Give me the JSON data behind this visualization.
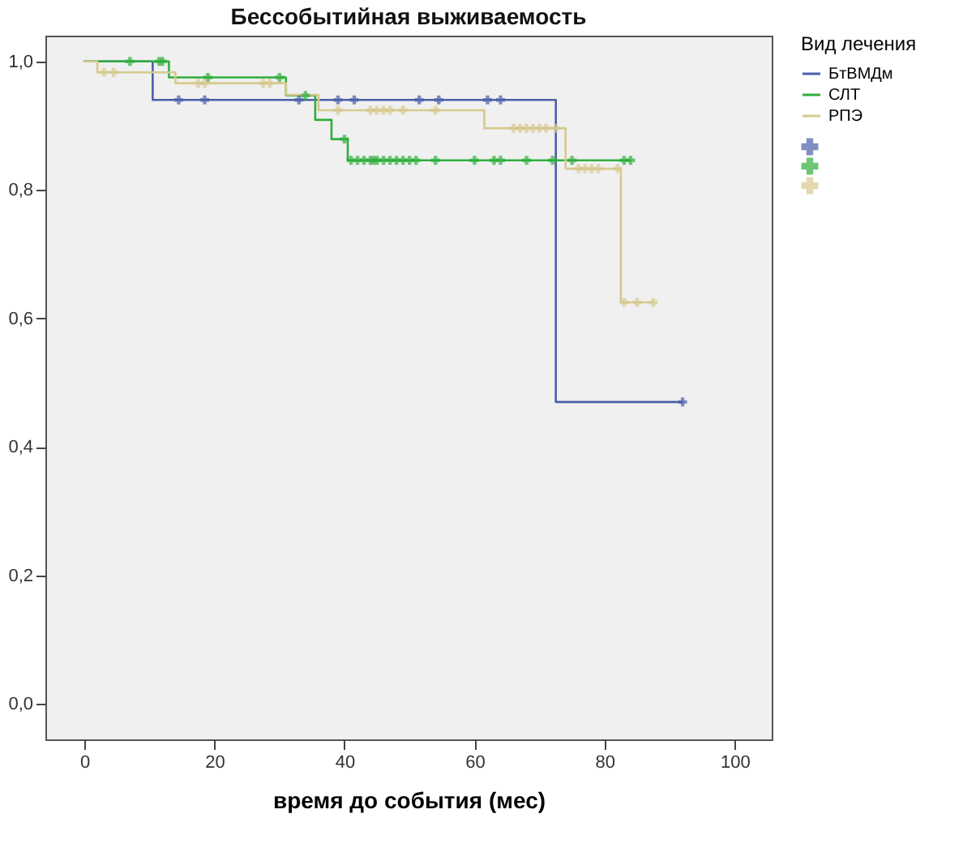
{
  "chart_data": {
    "type": "step",
    "title": "Бессобытийная выживаемость",
    "xlabel": "время до события (мес)",
    "legend_title": "Вид лечения",
    "legend": "right",
    "xlim": [
      -6,
      105.7
    ],
    "ylim": [
      -0.055,
      1.04
    ],
    "xticks": [
      0,
      20,
      40,
      60,
      80,
      100
    ],
    "yticks": [
      {
        "value": 0,
        "label": "0,0"
      },
      {
        "value": 0.2,
        "label": "0,2"
      },
      {
        "value": 0.4,
        "label": "0,4"
      },
      {
        "value": 0.6,
        "label": "0,6"
      },
      {
        "value": 0.8,
        "label": "0,8"
      },
      {
        "value": 1,
        "label": "1,0"
      }
    ],
    "grid": false,
    "series": [
      {
        "name": "БтВМДм",
        "color": "#4a5fa8",
        "x": [
          0,
          10.5,
          72.5,
          92
        ],
        "values": [
          1,
          0.94,
          0.47,
          0.47
        ]
      },
      {
        "name": "СЛТ",
        "color": "#2fae3c",
        "x": [
          0,
          13,
          31,
          35.5,
          38,
          40.5,
          84
        ],
        "values": [
          1,
          0.975,
          0.947,
          0.909,
          0.879,
          0.846,
          0.846
        ]
      },
      {
        "name": "РПЭ",
        "color": "#d6c98e",
        "x": [
          0,
          2,
          14,
          31,
          36,
          61.5,
          74,
          82.5,
          87.5
        ],
        "values": [
          1,
          0.983,
          0.966,
          0.948,
          0.924,
          0.896,
          0.833,
          0.625,
          0.625
        ]
      },
      {
        "type": "scatter",
        "marker": "cross",
        "color": "#4a5fa8",
        "x": [
          14.5,
          18.5,
          33,
          39,
          41.5,
          51.5,
          54.5,
          62,
          64,
          92
        ],
        "values": [
          0.94,
          0.94,
          0.94,
          0.94,
          0.94,
          0.94,
          0.94,
          0.94,
          0.94,
          0.47
        ]
      },
      {
        "type": "scatter",
        "marker": "cross",
        "color": "#2fae3c",
        "x": [
          7,
          11.5,
          12,
          19,
          30,
          34,
          40,
          41,
          42,
          43,
          44,
          44.5,
          45,
          46,
          47,
          48,
          49,
          50,
          51,
          54,
          60,
          63,
          64,
          68,
          72,
          75,
          83,
          84
        ],
        "values": [
          1,
          1,
          1,
          0.975,
          0.975,
          0.947,
          0.879,
          0.846,
          0.846,
          0.846,
          0.846,
          0.846,
          0.846,
          0.846,
          0.846,
          0.846,
          0.846,
          0.846,
          0.846,
          0.846,
          0.846,
          0.846,
          0.846,
          0.846,
          0.846,
          0.846,
          0.846,
          0.846
        ]
      },
      {
        "type": "scatter",
        "marker": "cross",
        "color": "#d6c98e",
        "x": [
          3,
          4.5,
          17.5,
          18.5,
          27.5,
          28.5,
          39,
          44,
          45,
          46,
          47,
          49,
          54,
          66,
          67,
          68,
          69,
          70,
          71,
          72.5,
          76,
          77,
          78,
          79,
          82,
          83,
          85,
          87.5
        ],
        "values": [
          0.983,
          0.983,
          0.966,
          0.966,
          0.966,
          0.966,
          0.924,
          0.924,
          0.924,
          0.924,
          0.924,
          0.924,
          0.924,
          0.896,
          0.896,
          0.896,
          0.896,
          0.896,
          0.896,
          0.896,
          0.833,
          0.833,
          0.833,
          0.833,
          0.833,
          0.625,
          0.625,
          0.625
        ]
      }
    ]
  }
}
